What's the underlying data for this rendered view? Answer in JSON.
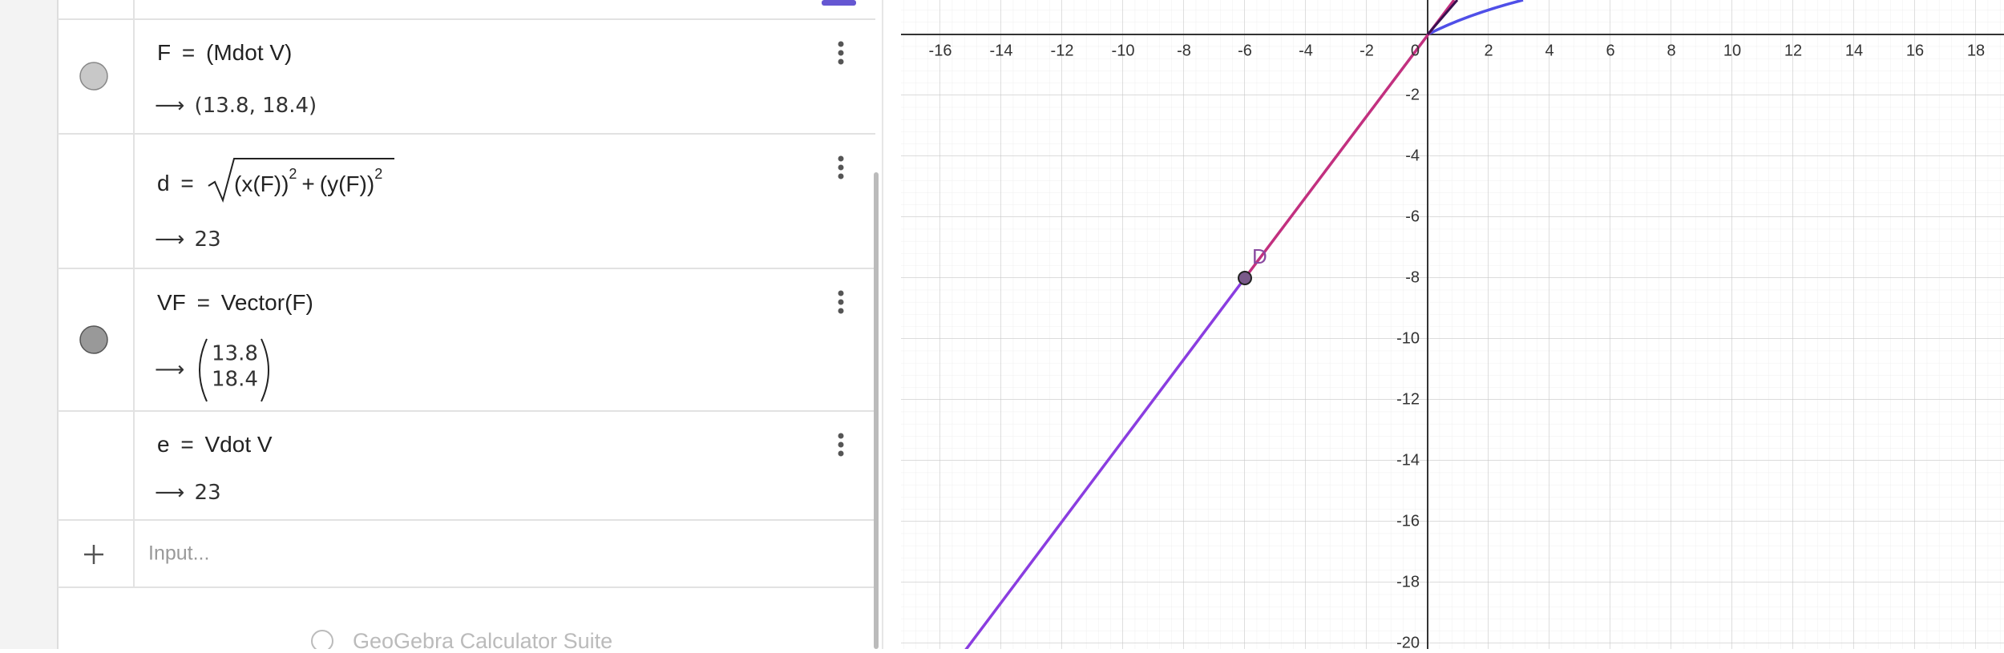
{
  "algebra": {
    "equals": "=",
    "arrow": "⟶",
    "items": [
      {
        "name": "F",
        "expression": "(Mdot V)",
        "value": "(13.8, 18.4)"
      },
      {
        "name": "d",
        "terms": [
          "(x(F))",
          "(y(F))"
        ],
        "exponent": "2",
        "operator": "+",
        "value": "23"
      },
      {
        "name": "VF",
        "expression": "Vector(F)",
        "vector": [
          "13.8",
          "18.4"
        ]
      },
      {
        "name": "e",
        "expression": "Vdot V",
        "value": "23"
      }
    ],
    "input_placeholder": "Input...",
    "footer": "GeoGebra Calculator Suite"
  },
  "graph": {
    "x_labels": [
      -16,
      -14,
      -12,
      -10,
      -8,
      -6,
      -4,
      -2,
      0,
      2,
      4,
      6,
      8,
      10,
      12,
      14,
      16,
      18
    ],
    "y_labels": [
      -2,
      -4,
      -6,
      -8,
      -10,
      -12,
      -14,
      -16,
      -18,
      -20
    ],
    "point_label": "D"
  }
}
